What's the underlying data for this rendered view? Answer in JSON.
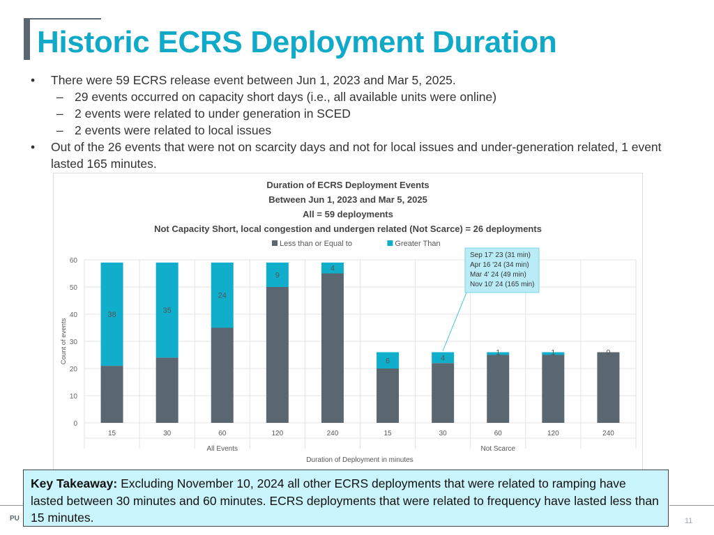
{
  "slide": {
    "title": "Historic ECRS Deployment Duration",
    "bullets": [
      {
        "level": 1,
        "text": "There were 59 ECRS release event between Jun 1, 2023 and Mar 5, 2025."
      },
      {
        "level": 2,
        "text": "29 events occurred on capacity short days (i.e., all available units were online)"
      },
      {
        "level": 2,
        "text": "2 events were related to under generation in SCED"
      },
      {
        "level": 2,
        "text": "2 events were related to local issues"
      },
      {
        "level": 1,
        "text": "Out of the 26 events that were not on scarcity days and not for local issues and under-generation related, 1 event lasted 165 minutes."
      }
    ],
    "takeaway_label": "Key Takeaway:",
    "takeaway_text": " Excluding November 10, 2024 all other ECRS deployments that were related to ramping have lasted between 30 minutes and 60 minutes. ECRS deployments that were related to frequency have lasted less than 15 minutes.",
    "footer_left": "PU",
    "page_number": "11"
  },
  "chart_data": {
    "type": "bar",
    "stacked": true,
    "title_lines": [
      "Duration of ECRS Deployment Events",
      "Between Jun 1, 2023 and Mar 5, 2025",
      "All  = 59 deployments",
      "Not Capacity Short, local congestion and undergen related (Not Scarce) = 26 deployments"
    ],
    "categories": [
      "15",
      "30",
      "60",
      "120",
      "240",
      "15",
      "30",
      "60",
      "120",
      "240"
    ],
    "groups": [
      {
        "label": "All Events",
        "start": 0,
        "end": 4
      },
      {
        "label": "Not Scarce",
        "start": 5,
        "end": 9
      }
    ],
    "series": [
      {
        "name": "Less than  or Equal to",
        "color": "#5b6770",
        "values": [
          21,
          24,
          35,
          50,
          55,
          20,
          22,
          25,
          25,
          26
        ]
      },
      {
        "name": "Greater Than",
        "color": "#10aecb",
        "values": [
          38,
          35,
          24,
          9,
          4,
          6,
          4,
          1,
          1,
          0
        ]
      }
    ],
    "data_labels": [
      "38",
      "35",
      "24",
      "9",
      "4",
      "6",
      "4",
      "1",
      "1",
      "0"
    ],
    "xlabel": "Duration of Deployment in minutes",
    "ylabel": "Count of events",
    "ylim": [
      0,
      60
    ],
    "yticks": [
      0,
      10,
      20,
      30,
      40,
      50,
      60
    ],
    "grid": true,
    "legend_position": "top",
    "callout": {
      "lines": [
        "Sep 17' 23 (31 min)",
        "Apr 16 '24 (34 min)",
        "Mar 4' 24 (49 min)",
        "Nov 10' 24 (165 min)"
      ],
      "points_to_category_index": 6
    }
  }
}
